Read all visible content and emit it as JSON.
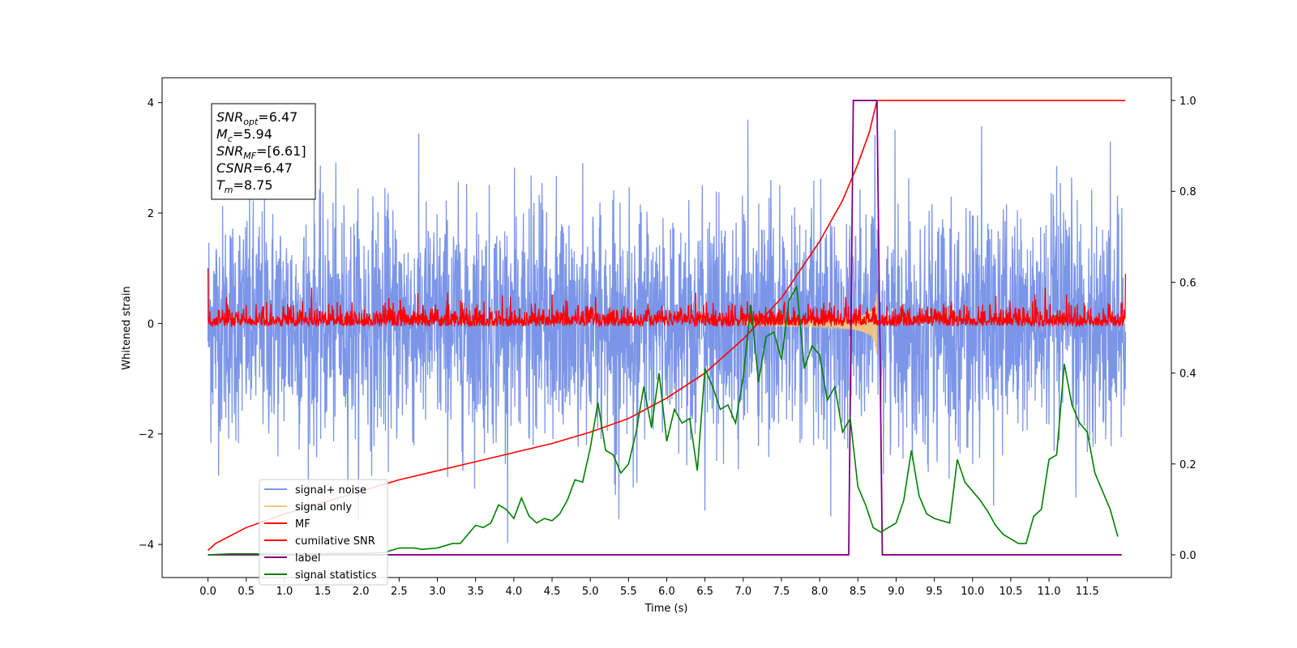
{
  "chart_data": {
    "type": "line",
    "xlabel": "Time (s)",
    "ylabel_left": "Whitened strain",
    "xlim": [
      -0.6,
      12.6
    ],
    "ylim_left": [
      -4.6,
      4.45
    ],
    "ylim_right": [
      -0.05,
      1.05
    ],
    "x_ticks": [
      0.0,
      0.5,
      1.0,
      1.5,
      2.0,
      2.5,
      3.0,
      3.5,
      4.0,
      4.5,
      5.0,
      5.5,
      6.0,
      6.5,
      7.0,
      7.5,
      8.0,
      8.5,
      9.0,
      9.5,
      10.0,
      10.5,
      11.0,
      11.5
    ],
    "x_tick_labels": [
      "0.0",
      "0.5",
      "1.0",
      "1.5",
      "2.0",
      "2.5",
      "3.0",
      "3.5",
      "4.0",
      "4.5",
      "5.0",
      "5.5",
      "6.0",
      "6.5",
      "7.0",
      "7.5",
      "8.0",
      "8.5",
      "9.0",
      "9.5",
      "10.0",
      "10.5",
      "11.0",
      "11.5"
    ],
    "y_left_ticks": [
      -4,
      -2,
      0,
      2,
      4
    ],
    "y_left_tick_labels": [
      "−4",
      "−2",
      "0",
      "2",
      "4"
    ],
    "y_right_ticks": [
      0.0,
      0.2,
      0.4,
      0.6,
      0.8,
      1.0
    ],
    "y_right_tick_labels": [
      "0.0",
      "0.2",
      "0.4",
      "0.6",
      "0.8",
      "1.0"
    ],
    "legend": {
      "placement": "lower-left",
      "entries": [
        {
          "label": "signal+ noise",
          "color": "#7b95e8"
        },
        {
          "label": "signal only",
          "color": "#f5c87a"
        },
        {
          "label": "MF",
          "color": "#ff0000"
        },
        {
          "label": "cumilative SNR",
          "color": "#ff0000"
        },
        {
          "label": "label",
          "color": "#800080"
        },
        {
          "label": "signal statistics",
          "color": "#008000"
        }
      ]
    },
    "info_box": {
      "lines": [
        {
          "base": "SNR",
          "sub": "opt",
          "value": "=6.47"
        },
        {
          "base": "M",
          "sub": "c",
          "value": "=5.94"
        },
        {
          "base": "SNR",
          "sub": "MF",
          "value": "=[6.61]"
        },
        {
          "base": "CSNR",
          "sub": "",
          "value": "=6.47"
        },
        {
          "base": "T",
          "sub": "m",
          "value": "=8.75"
        }
      ]
    },
    "series": [
      {
        "name": "signal+ noise",
        "axis": "left",
        "color": "#7b95e8",
        "t_start": 0.0,
        "t_end": 12.0,
        "envelope": [
          -4.1,
          4.05
        ]
      },
      {
        "name": "signal only",
        "axis": "left",
        "color": "#f5c87a",
        "t_start": 7.0,
        "t_end": 8.75,
        "peak_amplitude": 0.75
      },
      {
        "name": "MF",
        "axis": "left",
        "color": "#ff0000",
        "t_start": 0.0,
        "t_end": 12.0,
        "envelope": [
          -0.25,
          0.65
        ],
        "start_value": 1.0,
        "end_value": 0.9
      },
      {
        "name": "cumilative SNR",
        "axis": "right",
        "color": "#ff0000",
        "x": [
          0.0,
          0.1,
          0.5,
          1.0,
          1.5,
          2.0,
          2.5,
          3.0,
          3.5,
          4.0,
          4.5,
          5.0,
          5.5,
          6.0,
          6.5,
          7.0,
          7.5,
          8.0,
          8.3,
          8.5,
          8.65,
          8.75,
          9.0,
          12.0
        ],
        "values": [
          0.01,
          0.025,
          0.06,
          0.09,
          0.115,
          0.14,
          0.165,
          0.185,
          0.205,
          0.225,
          0.245,
          0.27,
          0.3,
          0.345,
          0.4,
          0.475,
          0.565,
          0.69,
          0.78,
          0.86,
          0.93,
          1.0,
          1.0,
          1.0
        ]
      },
      {
        "name": "label",
        "axis": "right",
        "color": "#800080",
        "x": [
          0.0,
          8.38,
          8.44,
          8.75,
          8.82,
          11.95
        ],
        "values": [
          0.0,
          0.0,
          1.0,
          1.0,
          0.0,
          0.0
        ]
      },
      {
        "name": "signal statistics",
        "axis": "right",
        "color": "#008000",
        "x": [
          0.0,
          0.3,
          0.6,
          1.0,
          1.5,
          2.0,
          2.3,
          2.5,
          2.7,
          2.8,
          3.0,
          3.2,
          3.3,
          3.5,
          3.6,
          3.7,
          3.8,
          3.9,
          4.0,
          4.1,
          4.2,
          4.3,
          4.4,
          4.5,
          4.6,
          4.7,
          4.8,
          4.9,
          5.0,
          5.1,
          5.2,
          5.3,
          5.4,
          5.5,
          5.6,
          5.7,
          5.8,
          5.9,
          6.0,
          6.1,
          6.2,
          6.3,
          6.4,
          6.5,
          6.6,
          6.7,
          6.8,
          6.9,
          7.0,
          7.1,
          7.2,
          7.3,
          7.4,
          7.5,
          7.6,
          7.7,
          7.8,
          7.9,
          8.0,
          8.1,
          8.2,
          8.3,
          8.4,
          8.5,
          8.6,
          8.7,
          8.8,
          8.9,
          9.0,
          9.1,
          9.2,
          9.3,
          9.4,
          9.5,
          9.6,
          9.7,
          9.8,
          9.9,
          10.0,
          10.1,
          10.2,
          10.3,
          10.4,
          10.5,
          10.6,
          10.7,
          10.8,
          10.9,
          11.0,
          11.1,
          11.2,
          11.3,
          11.4,
          11.5,
          11.6,
          11.7,
          11.8,
          11.9
        ],
        "values": [
          0.0,
          0.002,
          0.002,
          0.001,
          0.003,
          0.003,
          0.005,
          0.015,
          0.015,
          0.012,
          0.015,
          0.025,
          0.025,
          0.065,
          0.06,
          0.07,
          0.11,
          0.1,
          0.08,
          0.125,
          0.085,
          0.07,
          0.08,
          0.075,
          0.09,
          0.12,
          0.165,
          0.16,
          0.235,
          0.335,
          0.23,
          0.22,
          0.18,
          0.2,
          0.27,
          0.37,
          0.28,
          0.4,
          0.25,
          0.32,
          0.29,
          0.3,
          0.185,
          0.41,
          0.37,
          0.32,
          0.33,
          0.29,
          0.39,
          0.55,
          0.38,
          0.48,
          0.49,
          0.43,
          0.56,
          0.59,
          0.41,
          0.46,
          0.44,
          0.34,
          0.37,
          0.27,
          0.3,
          0.15,
          0.11,
          0.06,
          0.05,
          0.06,
          0.07,
          0.12,
          0.23,
          0.13,
          0.09,
          0.08,
          0.075,
          0.07,
          0.21,
          0.16,
          0.14,
          0.12,
          0.095,
          0.065,
          0.045,
          0.035,
          0.025,
          0.025,
          0.085,
          0.1,
          0.21,
          0.22,
          0.42,
          0.33,
          0.29,
          0.27,
          0.18,
          0.14,
          0.1,
          0.04
        ]
      }
    ]
  }
}
